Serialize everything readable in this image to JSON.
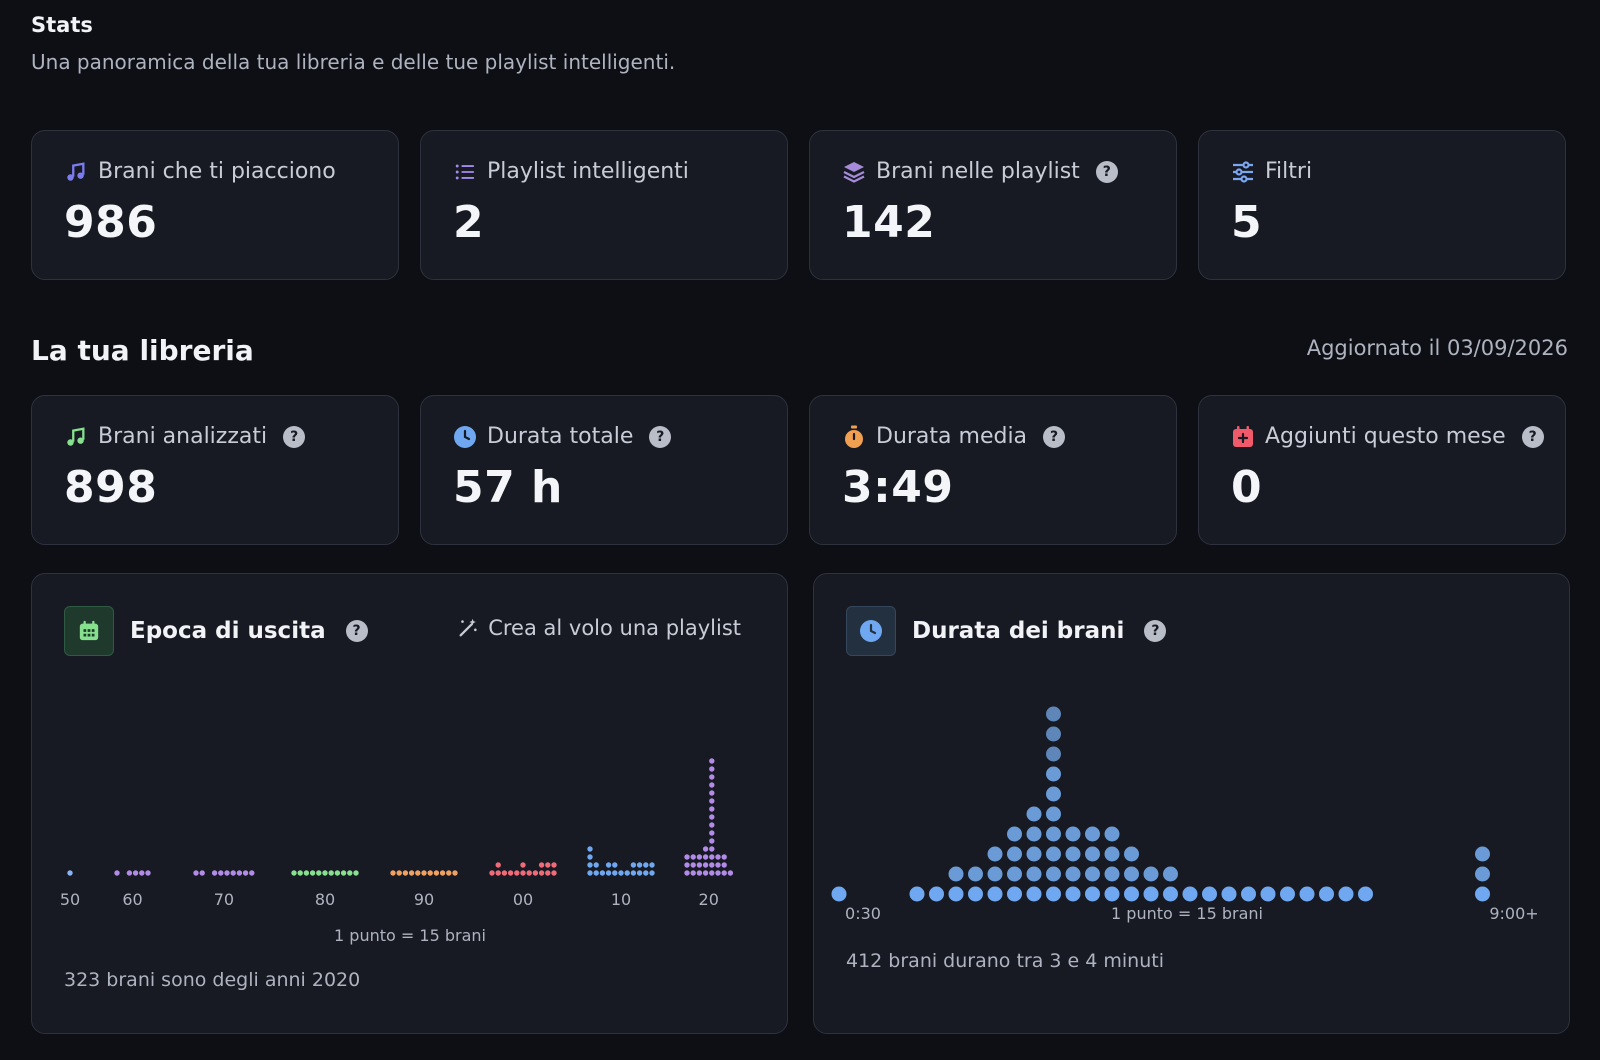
{
  "header": {
    "title": "Stats",
    "subtitle": "Una panoramica della tua libreria e delle tue playlist intelligenti."
  },
  "top_stats": [
    {
      "label": "Brani che ti piacciono",
      "value": "986",
      "icon": "music-note-icon",
      "color": "#7b7cf0"
    },
    {
      "label": "Playlist intelligenti",
      "value": "2",
      "icon": "list-icon",
      "color": "#a58af0"
    },
    {
      "label": "Brani nelle playlist",
      "value": "142",
      "icon": "layers-icon",
      "color": "#a78bdb"
    },
    {
      "label": "Filtri",
      "value": "5",
      "icon": "sliders-icon",
      "color": "#7aa7f0"
    }
  ],
  "library": {
    "title": "La tua libreria",
    "updated": "Aggiornato il 03/09/2026",
    "stats": [
      {
        "label": "Brani analizzati",
        "value": "898",
        "icon": "music-notes-icon",
        "color": "#86e08e"
      },
      {
        "label": "Durata totale",
        "value": "57 h",
        "icon": "clock-icon",
        "color": "#6fa8f0"
      },
      {
        "label": "Durata media",
        "value": "3:49",
        "icon": "stopwatch-icon",
        "color": "#f0a050"
      },
      {
        "label": "Aggiunti questo mese",
        "value": "0",
        "icon": "calendar-plus-icon",
        "color": "#f05a6a"
      }
    ]
  },
  "era_panel": {
    "title": "Epoca di uscita",
    "action": "Crea al volo una playlist",
    "legend": "1 punto = 15 brani",
    "footnote": "323 brani sono degli anni 2020",
    "icon_color": "#86e08e"
  },
  "duration_panel": {
    "title": "Durata dei brani",
    "legend": "1 punto = 15 brani",
    "footnote": "412 brani durano tra 3 e 4 minuti",
    "icon_color": "#6fa8f0"
  },
  "chart_data": [
    {
      "type": "scatter",
      "title": "Epoca di uscita",
      "style": "dot histogram (1 dot = 15 tracks)",
      "categories": [
        "50",
        "60",
        "70",
        "80",
        "90",
        "00",
        "10",
        "20"
      ],
      "series": [
        {
          "decade": "50",
          "color": "#8ab4f8",
          "columns": [
            1
          ]
        },
        {
          "decade": "60",
          "color": "#b28ae8",
          "columns": [
            1,
            0,
            1,
            1,
            1,
            1
          ]
        },
        {
          "decade": "70",
          "color": "#b28ae8",
          "columns": [
            1,
            1,
            0,
            1,
            1,
            1,
            1,
            1,
            1,
            1
          ]
        },
        {
          "decade": "80",
          "color": "#86e08e",
          "columns": [
            1,
            1,
            1,
            1,
            1,
            1,
            1,
            1,
            1,
            1,
            1
          ]
        },
        {
          "decade": "90",
          "color": "#f0a060",
          "columns": [
            1,
            1,
            1,
            1,
            1,
            1,
            1,
            1,
            1,
            1,
            1
          ]
        },
        {
          "decade": "00",
          "color": "#f06a78",
          "columns": [
            1,
            2,
            1,
            1,
            1,
            2,
            1,
            1,
            2,
            2,
            2
          ]
        },
        {
          "decade": "10",
          "color": "#6fa8f0",
          "columns": [
            4,
            2,
            1,
            2,
            2,
            1,
            1,
            2,
            2,
            2,
            2
          ]
        },
        {
          "decade": "20",
          "color": "#b28ae8",
          "columns": [
            3,
            3,
            3,
            4,
            15,
            3,
            3,
            1
          ]
        }
      ],
      "ticks_shown": [
        "50",
        "60",
        "70",
        "80",
        "90",
        "00",
        "10",
        "20"
      ]
    },
    {
      "type": "scatter",
      "title": "Durata dei brani",
      "style": "dot histogram (1 dot = 15 tracks)",
      "x_start_label": "0:30",
      "x_end_label": "9:00+",
      "color": "#6fa8f0",
      "columns": [
        1,
        0,
        0,
        0,
        1,
        1,
        2,
        2,
        3,
        4,
        5,
        10,
        4,
        4,
        4,
        3,
        2,
        2,
        1,
        1,
        1,
        1,
        1,
        1,
        1,
        1,
        1,
        1,
        0,
        0,
        0,
        0,
        0,
        3
      ]
    }
  ]
}
